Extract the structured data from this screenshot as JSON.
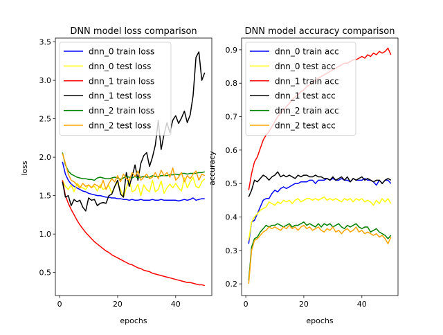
{
  "chart_data": [
    {
      "type": "line",
      "title": "DNN model loss comparison",
      "xlabel": "epochs",
      "ylabel": "loss",
      "xlim": [
        -1.45,
        52.45
      ],
      "ylim": [
        0.2,
        3.55
      ],
      "xticks": [
        0,
        20,
        40
      ],
      "yticks": [
        0.5,
        1.0,
        1.5,
        2.0,
        2.5,
        3.0,
        3.5
      ],
      "ytick_labels": [
        "0.5",
        "1.0",
        "1.5",
        "2.0",
        "2.5",
        "3.0",
        "3.5"
      ],
      "legend_loc": "upper left",
      "grid": false,
      "x": [
        1,
        2,
        3,
        4,
        5,
        6,
        7,
        8,
        9,
        10,
        11,
        12,
        13,
        14,
        15,
        16,
        17,
        18,
        19,
        20,
        21,
        22,
        23,
        24,
        25,
        26,
        27,
        28,
        29,
        30,
        31,
        32,
        33,
        34,
        35,
        36,
        37,
        38,
        39,
        40,
        41,
        42,
        43,
        44,
        45,
        46,
        47,
        48,
        49,
        50
      ],
      "series": [
        {
          "name": "dnn_0 train loss",
          "color": "#0000ff",
          "values": [
            1.94,
            1.78,
            1.7,
            1.65,
            1.62,
            1.6,
            1.58,
            1.56,
            1.55,
            1.53,
            1.52,
            1.51,
            1.5,
            1.5,
            1.49,
            1.48,
            1.48,
            1.47,
            1.47,
            1.46,
            1.46,
            1.45,
            1.45,
            1.44,
            1.45,
            1.44,
            1.44,
            1.45,
            1.44,
            1.44,
            1.44,
            1.45,
            1.44,
            1.44,
            1.45,
            1.44,
            1.44,
            1.44,
            1.44,
            1.44,
            1.43,
            1.44,
            1.45,
            1.44,
            1.45,
            1.47,
            1.44,
            1.45,
            1.46,
            1.46
          ]
        },
        {
          "name": "dnn_0 test loss",
          "color": "#ffff00",
          "values": [
            1.7,
            1.62,
            1.58,
            1.64,
            1.55,
            1.66,
            1.62,
            1.6,
            1.58,
            1.64,
            1.61,
            1.62,
            1.56,
            1.64,
            1.58,
            1.6,
            1.63,
            1.53,
            1.62,
            1.67,
            1.58,
            1.48,
            1.6,
            1.71,
            1.55,
            1.57,
            1.65,
            1.5,
            1.64,
            1.58,
            1.55,
            1.7,
            1.55,
            1.58,
            1.69,
            1.53,
            1.6,
            1.65,
            1.6,
            1.66,
            1.6,
            1.56,
            1.73,
            1.6,
            1.68,
            1.74,
            1.62,
            1.6,
            1.68,
            1.72
          ]
        },
        {
          "name": "dnn_1 train loss",
          "color": "#ff0000",
          "values": [
            1.7,
            1.5,
            1.4,
            1.32,
            1.25,
            1.18,
            1.12,
            1.07,
            1.02,
            0.98,
            0.94,
            0.9,
            0.87,
            0.84,
            0.81,
            0.78,
            0.76,
            0.73,
            0.71,
            0.69,
            0.67,
            0.65,
            0.63,
            0.61,
            0.6,
            0.58,
            0.56,
            0.55,
            0.53,
            0.52,
            0.51,
            0.49,
            0.48,
            0.47,
            0.46,
            0.45,
            0.44,
            0.43,
            0.42,
            0.41,
            0.4,
            0.39,
            0.38,
            0.37,
            0.37,
            0.36,
            0.35,
            0.34,
            0.34,
            0.33
          ]
        },
        {
          "name": "dnn_1 test loss",
          "color": "#000000",
          "values": [
            1.68,
            1.48,
            1.5,
            1.37,
            1.45,
            1.42,
            1.44,
            1.35,
            1.3,
            1.47,
            1.44,
            1.45,
            1.37,
            1.4,
            1.41,
            1.4,
            1.5,
            1.52,
            1.62,
            1.7,
            1.52,
            1.48,
            1.8,
            1.62,
            1.75,
            1.9,
            1.7,
            1.92,
            2.02,
            2.06,
            1.88,
            2.0,
            2.16,
            2.48,
            2.1,
            2.3,
            2.45,
            2.32,
            2.48,
            2.54,
            2.44,
            2.51,
            2.6,
            2.45,
            2.55,
            2.8,
            3.3,
            3.37,
            3.0,
            3.1
          ]
        },
        {
          "name": "dnn_2 train loss",
          "color": "#008000",
          "values": [
            2.06,
            1.9,
            1.82,
            1.78,
            1.76,
            1.74,
            1.73,
            1.72,
            1.72,
            1.71,
            1.71,
            1.7,
            1.73,
            1.74,
            1.73,
            1.72,
            1.72,
            1.73,
            1.74,
            1.73,
            1.71,
            1.73,
            1.75,
            1.74,
            1.73,
            1.75,
            1.73,
            1.74,
            1.75,
            1.74,
            1.74,
            1.76,
            1.75,
            1.75,
            1.76,
            1.76,
            1.76,
            1.77,
            1.77,
            1.78,
            1.77,
            1.79,
            1.79,
            1.78,
            1.79,
            1.79,
            1.79,
            1.8,
            1.8,
            1.81
          ]
        },
        {
          "name": "dnn_2 test loss",
          "color": "#ffa500",
          "values": [
            2.05,
            1.92,
            1.78,
            1.7,
            1.68,
            1.64,
            1.6,
            1.66,
            1.62,
            1.64,
            1.6,
            1.65,
            1.63,
            1.6,
            1.7,
            1.58,
            1.66,
            1.72,
            1.68,
            1.76,
            1.68,
            1.78,
            1.72,
            1.7,
            1.8,
            1.75,
            1.82,
            1.7,
            1.74,
            1.78,
            1.72,
            1.74,
            1.8,
            1.72,
            1.83,
            1.76,
            1.8,
            1.74,
            1.86,
            1.7,
            1.74,
            1.8,
            1.68,
            1.76,
            1.72,
            1.78,
            1.82,
            1.7,
            1.78,
            1.76
          ]
        }
      ]
    },
    {
      "type": "line",
      "title": "DNN model accuracy comparison",
      "xlabel": "epochs",
      "ylabel": "accuracy",
      "xlim": [
        -1.45,
        52.45
      ],
      "ylim": [
        0.165,
        0.935
      ],
      "xticks": [
        0,
        20,
        40
      ],
      "yticks": [
        0.2,
        0.3,
        0.4,
        0.5,
        0.6,
        0.7,
        0.8,
        0.9
      ],
      "ytick_labels": [
        "0.2",
        "0.3",
        "0.4",
        "0.5",
        "0.6",
        "0.7",
        "0.8",
        "0.9"
      ],
      "legend_loc": "upper left",
      "grid": false,
      "x": [
        1,
        2,
        3,
        4,
        5,
        6,
        7,
        8,
        9,
        10,
        11,
        12,
        13,
        14,
        15,
        16,
        17,
        18,
        19,
        20,
        21,
        22,
        23,
        24,
        25,
        26,
        27,
        28,
        29,
        30,
        31,
        32,
        33,
        34,
        35,
        36,
        37,
        38,
        39,
        40,
        41,
        42,
        43,
        44,
        45,
        46,
        47,
        48,
        49,
        50
      ],
      "series": [
        {
          "name": "dnn_0 train acc",
          "color": "#0000ff",
          "values": [
            0.32,
            0.385,
            0.39,
            0.41,
            0.43,
            0.45,
            0.455,
            0.455,
            0.47,
            0.48,
            0.475,
            0.485,
            0.49,
            0.485,
            0.49,
            0.495,
            0.5,
            0.5,
            0.505,
            0.505,
            0.505,
            0.51,
            0.51,
            0.5,
            0.51,
            0.51,
            0.51,
            0.515,
            0.51,
            0.515,
            0.51,
            0.51,
            0.515,
            0.51,
            0.51,
            0.505,
            0.515,
            0.51,
            0.51,
            0.51,
            0.515,
            0.51,
            0.51,
            0.505,
            0.495,
            0.51,
            0.5,
            0.51,
            0.51,
            0.5
          ]
        },
        {
          "name": "dnn_0 test acc",
          "color": "#ffff00",
          "values": [
            0.33,
            0.385,
            0.4,
            0.41,
            0.42,
            0.425,
            0.43,
            0.445,
            0.44,
            0.435,
            0.445,
            0.44,
            0.45,
            0.445,
            0.45,
            0.44,
            0.45,
            0.455,
            0.445,
            0.45,
            0.455,
            0.455,
            0.45,
            0.455,
            0.45,
            0.455,
            0.46,
            0.45,
            0.455,
            0.45,
            0.455,
            0.45,
            0.445,
            0.455,
            0.45,
            0.455,
            0.445,
            0.455,
            0.45,
            0.455,
            0.445,
            0.45,
            0.445,
            0.435,
            0.45,
            0.44,
            0.455,
            0.445,
            0.455,
            0.44
          ]
        },
        {
          "name": "dnn_1 train acc",
          "color": "#ff0000",
          "values": [
            0.48,
            0.53,
            0.565,
            0.58,
            0.605,
            0.63,
            0.645,
            0.655,
            0.67,
            0.685,
            0.7,
            0.71,
            0.72,
            0.73,
            0.74,
            0.75,
            0.76,
            0.765,
            0.775,
            0.78,
            0.79,
            0.795,
            0.8,
            0.81,
            0.815,
            0.82,
            0.825,
            0.83,
            0.835,
            0.84,
            0.845,
            0.85,
            0.855,
            0.86,
            0.86,
            0.865,
            0.87,
            0.87,
            0.875,
            0.88,
            0.875,
            0.885,
            0.88,
            0.89,
            0.885,
            0.895,
            0.89,
            0.895,
            0.905,
            0.885
          ]
        },
        {
          "name": "dnn_1 test acc",
          "color": "#000000",
          "values": [
            0.46,
            0.48,
            0.51,
            0.505,
            0.515,
            0.525,
            0.52,
            0.51,
            0.52,
            0.525,
            0.535,
            0.52,
            0.525,
            0.52,
            0.525,
            0.52,
            0.515,
            0.525,
            0.52,
            0.525,
            0.525,
            0.52,
            0.52,
            0.525,
            0.52,
            0.52,
            0.515,
            0.515,
            0.51,
            0.52,
            0.51,
            0.515,
            0.52,
            0.51,
            0.52,
            0.505,
            0.515,
            0.51,
            0.515,
            0.52,
            0.51,
            0.515,
            0.51,
            0.505,
            0.51,
            0.51,
            0.5,
            0.51,
            0.515,
            0.51
          ]
        },
        {
          "name": "dnn_2 train acc",
          "color": "#008000",
          "values": [
            0.21,
            0.31,
            0.335,
            0.34,
            0.355,
            0.365,
            0.375,
            0.37,
            0.375,
            0.375,
            0.38,
            0.375,
            0.37,
            0.375,
            0.38,
            0.37,
            0.375,
            0.375,
            0.38,
            0.385,
            0.375,
            0.38,
            0.375,
            0.37,
            0.38,
            0.37,
            0.38,
            0.375,
            0.38,
            0.37,
            0.375,
            0.38,
            0.37,
            0.365,
            0.375,
            0.37,
            0.375,
            0.38,
            0.37,
            0.365,
            0.37,
            0.37,
            0.355,
            0.36,
            0.365,
            0.355,
            0.35,
            0.345,
            0.335,
            0.345
          ]
        },
        {
          "name": "dnn_2 test acc",
          "color": "#ffa500",
          "values": [
            0.2,
            0.3,
            0.33,
            0.335,
            0.345,
            0.355,
            0.36,
            0.37,
            0.365,
            0.37,
            0.365,
            0.36,
            0.37,
            0.365,
            0.375,
            0.365,
            0.37,
            0.36,
            0.37,
            0.375,
            0.365,
            0.37,
            0.36,
            0.365,
            0.37,
            0.36,
            0.355,
            0.365,
            0.36,
            0.37,
            0.355,
            0.36,
            0.35,
            0.36,
            0.365,
            0.355,
            0.36,
            0.37,
            0.355,
            0.36,
            0.35,
            0.355,
            0.35,
            0.345,
            0.35,
            0.34,
            0.345,
            0.335,
            0.32,
            0.34
          ]
        }
      ]
    }
  ]
}
